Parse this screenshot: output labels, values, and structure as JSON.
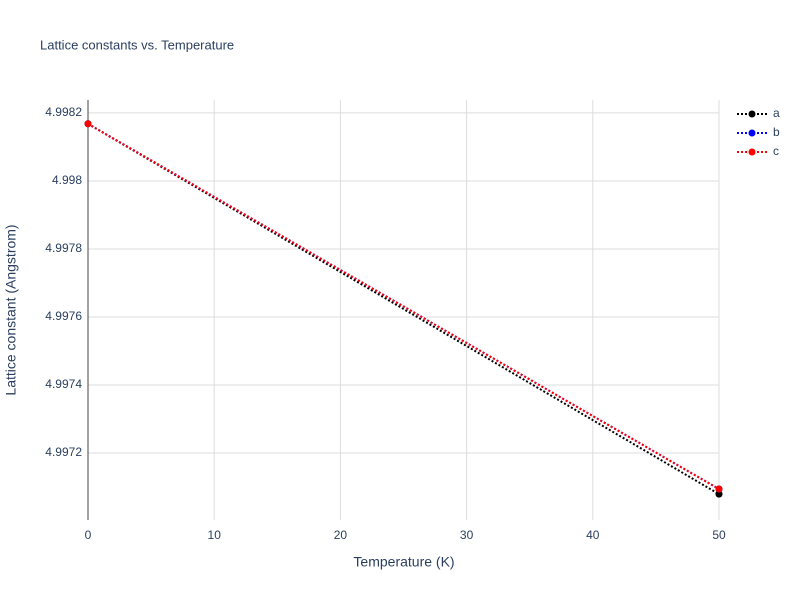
{
  "chart_data": {
    "type": "line",
    "title": "Lattice constants vs. Temperature",
    "x_label": "Temperature (K)",
    "y_label": "Lattice constant (Angstrom)",
    "x": [
      0,
      50
    ],
    "series": [
      {
        "name": "a",
        "color": "#000000",
        "values": [
          4.998168,
          4.997079
        ]
      },
      {
        "name": "b",
        "color": "#0000ff",
        "values": [
          4.998168,
          4.997094
        ]
      },
      {
        "name": "c",
        "color": "#ff0000",
        "values": [
          4.998168,
          4.997094
        ]
      }
    ],
    "xlim": [
      0,
      50
    ],
    "xticks": [
      0,
      10,
      20,
      30,
      40,
      50
    ],
    "ylim": [
      4.997003,
      4.998238
    ],
    "yticks": [
      4.9972,
      4.9974,
      4.9976,
      4.9978,
      4.998,
      4.9982
    ],
    "grid": true,
    "legend": "top-right"
  }
}
